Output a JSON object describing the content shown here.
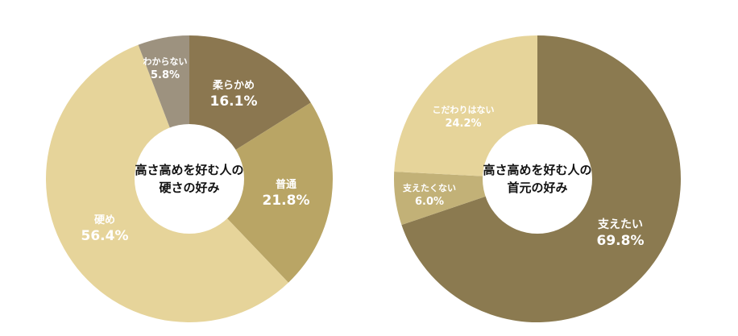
{
  "chart_data": [
    {
      "type": "pie",
      "center_title": [
        "高さ高めを好む人の",
        "硬さの好み"
      ],
      "slices": [
        {
          "label": "柔らかめ",
          "value": 16.1,
          "value_label": "16.1%",
          "color": "#8b7750",
          "text_color": "#ffffff"
        },
        {
          "label": "普通",
          "value": 21.8,
          "value_label": "21.8%",
          "color": "#b9a565",
          "text_color": "#ffffff"
        },
        {
          "label": "硬め",
          "value": 56.4,
          "value_label": "56.4%",
          "color": "#e6d49a",
          "text_color": "#ffffff"
        },
        {
          "label": "わからない",
          "value": 5.8,
          "value_label": "5.8%",
          "color": "#9d927f",
          "text_color": "#ffffff"
        }
      ]
    },
    {
      "type": "pie",
      "center_title": [
        "高さ高めを好む人の",
        "首元の好み"
      ],
      "slices": [
        {
          "label": "支えたい",
          "value": 69.8,
          "value_label": "69.8%",
          "color": "#8b7a50",
          "text_color": "#ffffff"
        },
        {
          "label": "支えたくない",
          "value": 6.0,
          "value_label": "6.0%",
          "color": "#c2b177",
          "text_color": "#ffffff"
        },
        {
          "label": "こだわりはない",
          "value": 24.2,
          "value_label": "24.2%",
          "color": "#e6d49a",
          "text_color": "#ffffff"
        }
      ]
    }
  ]
}
